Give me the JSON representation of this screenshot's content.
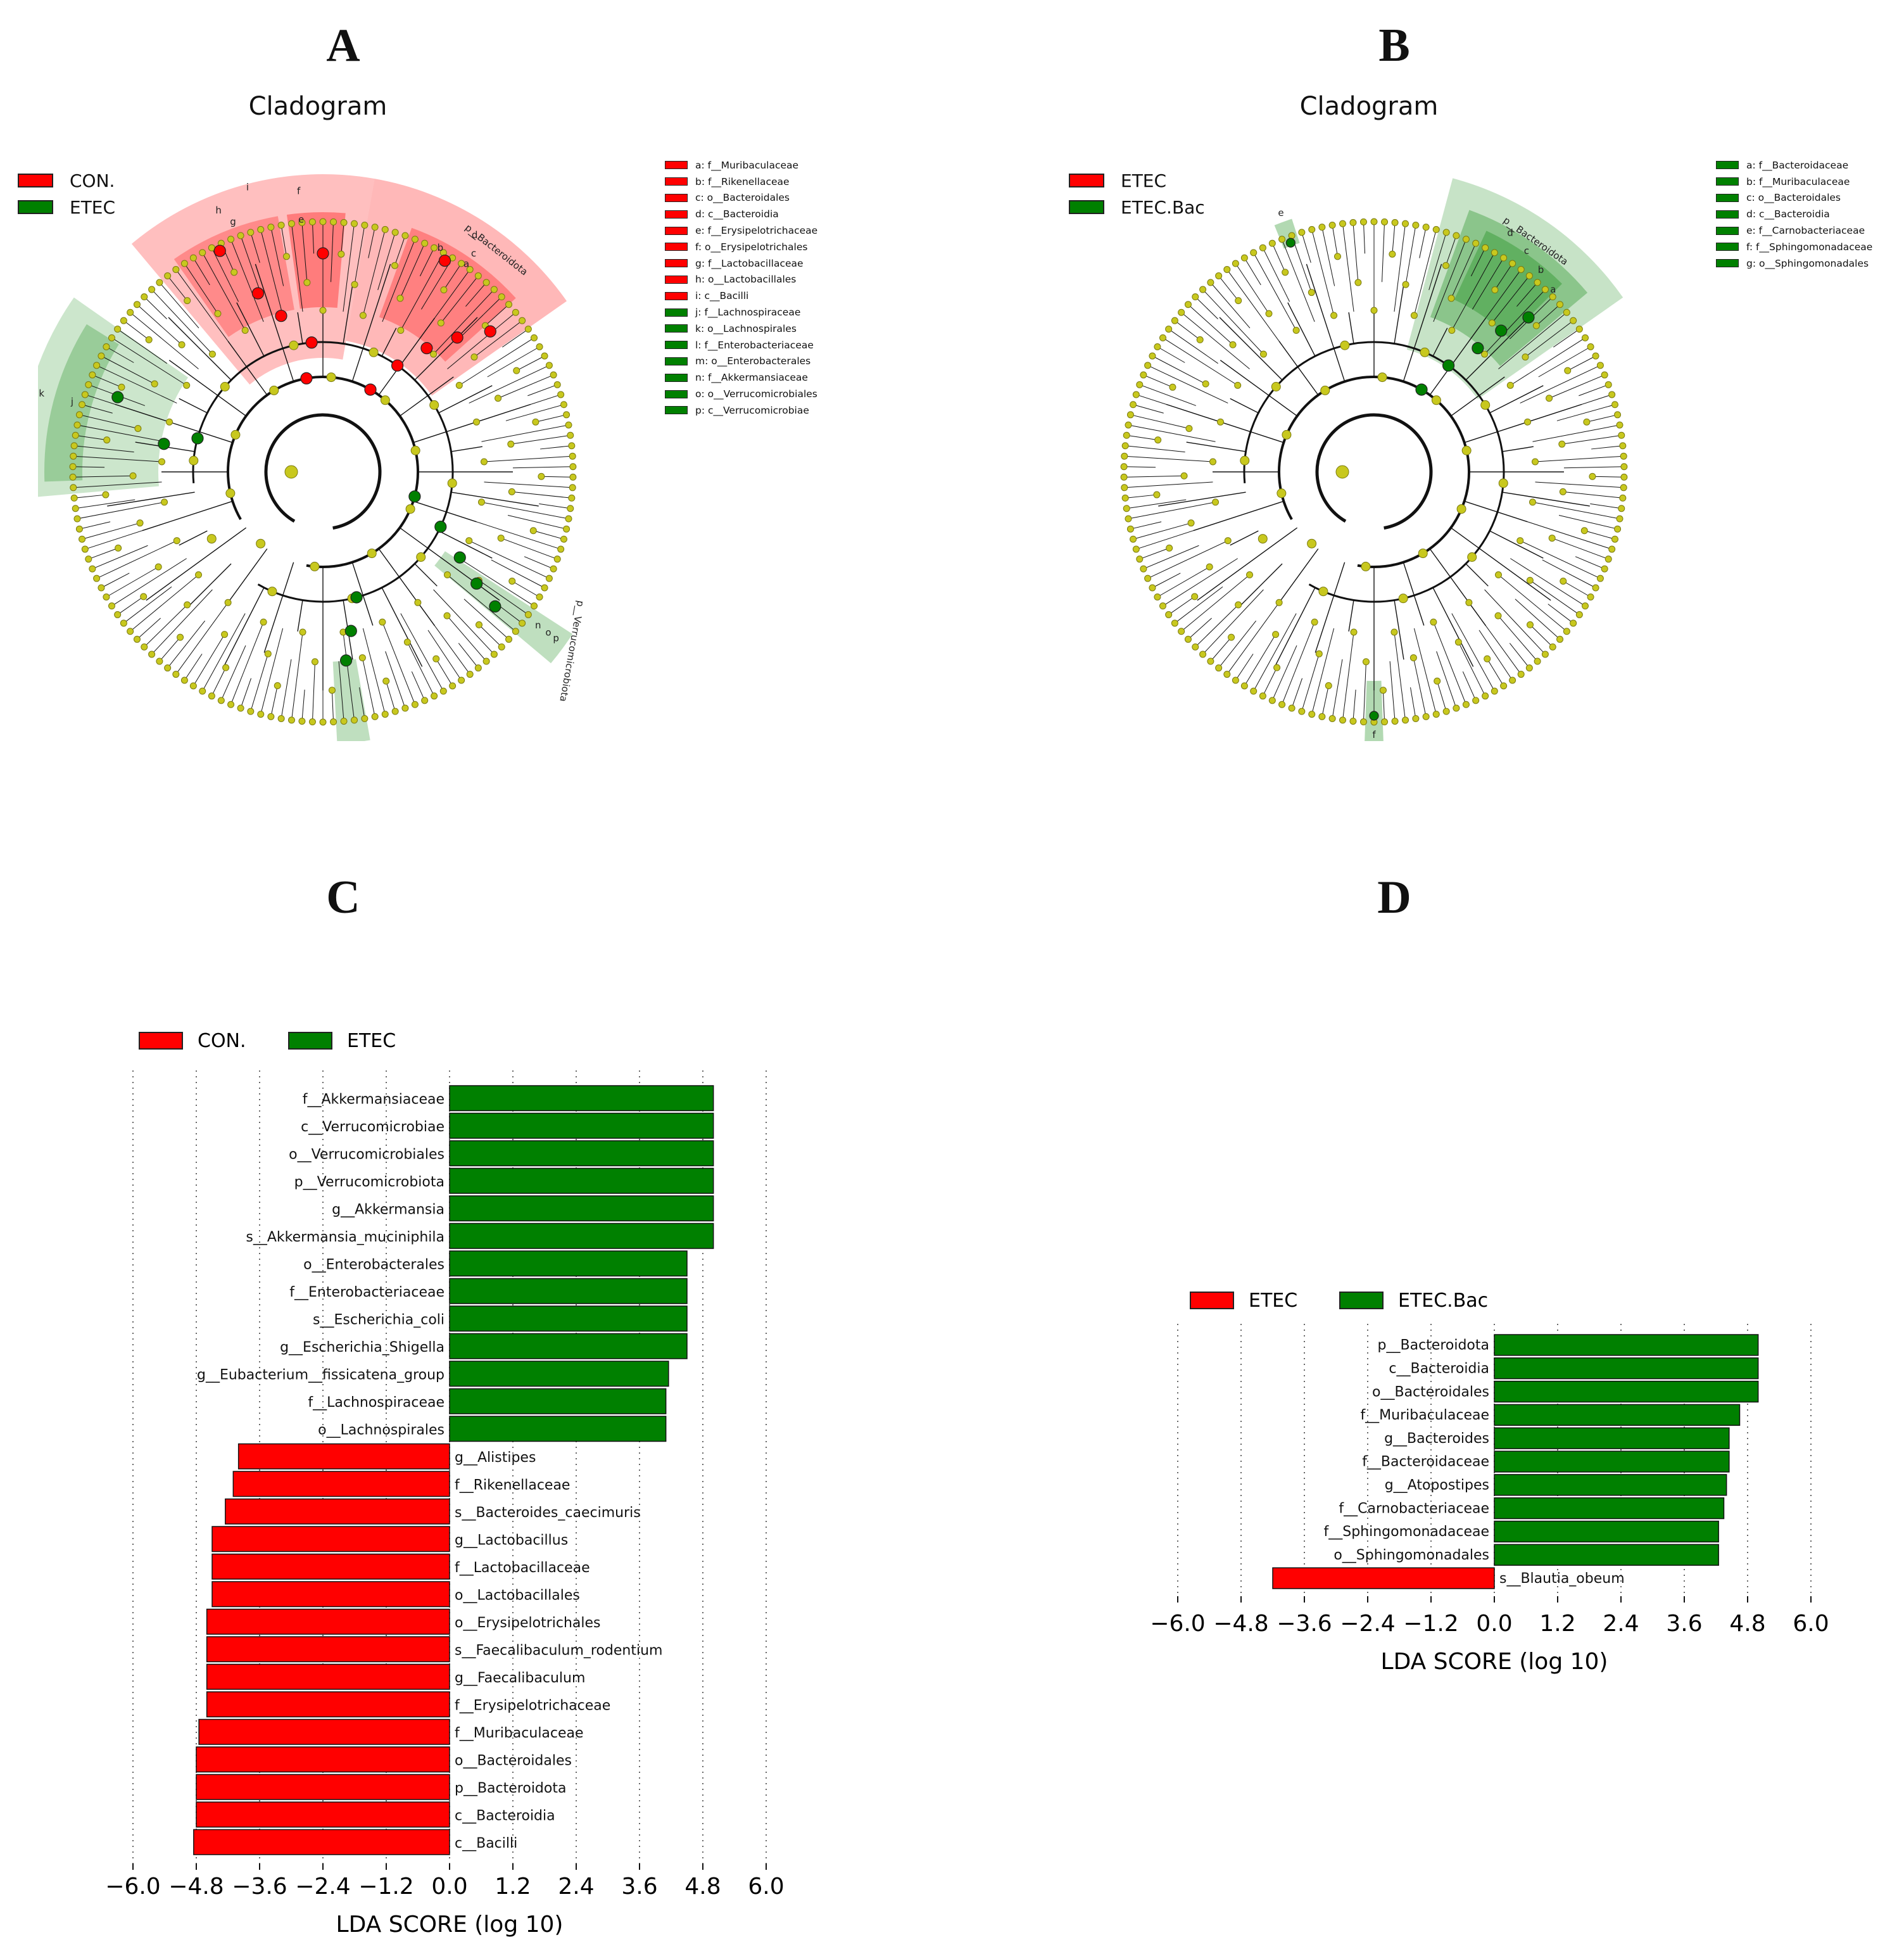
{
  "panels": {
    "A": "A",
    "B": "B",
    "C": "C",
    "D": "D"
  },
  "colors": {
    "red": "#ff0000",
    "green": "#008000",
    "node": "#c8c81e",
    "node_stroke": "#7a7a10"
  },
  "cladograms": [
    {
      "id": "A",
      "title": "Cladogram",
      "legend": [
        {
          "label": "CON.",
          "color": "#ff0000"
        },
        {
          "label": "ETEC",
          "color": "#008000"
        }
      ],
      "keys": [
        {
          "label": "a: f__Muribaculaceae",
          "color": "#ff0000"
        },
        {
          "label": "b: f__Rikenellaceae",
          "color": "#ff0000"
        },
        {
          "label": "c: o__Bacteroidales",
          "color": "#ff0000"
        },
        {
          "label": "d: c__Bacteroidia",
          "color": "#ff0000"
        },
        {
          "label": "e: f__Erysipelotrichaceae",
          "color": "#ff0000"
        },
        {
          "label": "f: o__Erysipelotrichales",
          "color": "#ff0000"
        },
        {
          "label": "g: f__Lactobacillaceae",
          "color": "#ff0000"
        },
        {
          "label": "h: o__Lactobacillales",
          "color": "#ff0000"
        },
        {
          "label": "i: c__Bacilli",
          "color": "#ff0000"
        },
        {
          "label": "j: f__Lachnospiraceae",
          "color": "#008000"
        },
        {
          "label": "k: o__Lachnospirales",
          "color": "#008000"
        },
        {
          "label": "l: f__Enterobacteriaceae",
          "color": "#008000"
        },
        {
          "label": "m: o__Enterobacterales",
          "color": "#008000"
        },
        {
          "label": "n: f__Akkermansiaceae",
          "color": "#008000"
        },
        {
          "label": "o: o__Verrucomicrobiales",
          "color": "#008000"
        },
        {
          "label": "p: c__Verrucomicrobiae",
          "color": "#008000"
        }
      ],
      "clade_labels": [
        "p__Bacteroidota",
        "p__Verrucomicrobiota",
        "a",
        "b",
        "c",
        "d",
        "e",
        "f",
        "g",
        "h",
        "i",
        "j",
        "k",
        "l",
        "m",
        "n",
        "o",
        "p"
      ]
    },
    {
      "id": "B",
      "title": "Cladogram",
      "legend": [
        {
          "label": "ETEC",
          "color": "#ff0000"
        },
        {
          "label": "ETEC.Bac",
          "color": "#008000"
        }
      ],
      "keys": [
        {
          "label": "a: f__Bacteroidaceae",
          "color": "#008000"
        },
        {
          "label": "b: f__Muribaculaceae",
          "color": "#008000"
        },
        {
          "label": "c: o__Bacteroidales",
          "color": "#008000"
        },
        {
          "label": "d: c__Bacteroidia",
          "color": "#008000"
        },
        {
          "label": "e: f__Carnobacteriaceae",
          "color": "#008000"
        },
        {
          "label": "f: f__Sphingomonadaceae",
          "color": "#008000"
        },
        {
          "label": "g: o__Sphingomonadales",
          "color": "#008000"
        }
      ],
      "clade_labels": [
        "p__Bacteroidota",
        "a",
        "b",
        "c",
        "d",
        "e",
        "f",
        "g"
      ]
    }
  ],
  "chart_data": [
    {
      "id": "C",
      "type": "bar",
      "orientation": "horizontal",
      "legend": [
        {
          "label": "CON.",
          "color": "#ff0000"
        },
        {
          "label": "ETEC",
          "color": "#008000"
        }
      ],
      "xlabel": "LDA SCORE (log 10)",
      "xlim": [
        -6.0,
        6.0
      ],
      "xticks": [
        "−6.0",
        "−4.8",
        "−3.6",
        "−2.4",
        "−1.2",
        "0.0",
        "1.2",
        "2.4",
        "3.6",
        "4.8",
        "6.0"
      ],
      "grid": "vertical dotted",
      "bars": [
        {
          "label": "f__Akkermansiaceae",
          "value": 5.0,
          "group": "ETEC"
        },
        {
          "label": "c__Verrucomicrobiae",
          "value": 5.0,
          "group": "ETEC"
        },
        {
          "label": "o__Verrucomicrobiales",
          "value": 5.0,
          "group": "ETEC"
        },
        {
          "label": "p__Verrucomicrobiota",
          "value": 5.0,
          "group": "ETEC"
        },
        {
          "label": "g__Akkermansia",
          "value": 5.0,
          "group": "ETEC"
        },
        {
          "label": "s__Akkermansia_muciniphila",
          "value": 5.0,
          "group": "ETEC"
        },
        {
          "label": "o__Enterobacterales",
          "value": 4.5,
          "group": "ETEC"
        },
        {
          "label": "f__Enterobacteriaceae",
          "value": 4.5,
          "group": "ETEC"
        },
        {
          "label": "s__Escherichia_coli",
          "value": 4.5,
          "group": "ETEC"
        },
        {
          "label": "g__Escherichia_Shigella",
          "value": 4.5,
          "group": "ETEC"
        },
        {
          "label": "g__Eubacterium__fissicatena_group",
          "value": 4.15,
          "group": "ETEC"
        },
        {
          "label": "f__Lachnospiraceae",
          "value": 4.1,
          "group": "ETEC"
        },
        {
          "label": "o__Lachnospirales",
          "value": 4.1,
          "group": "ETEC"
        },
        {
          "label": "g__Alistipes",
          "value": -4.0,
          "group": "CON."
        },
        {
          "label": "f__Rikenellaceae",
          "value": -4.1,
          "group": "CON."
        },
        {
          "label": "s__Bacteroides_caecimuris",
          "value": -4.25,
          "group": "CON."
        },
        {
          "label": "g__Lactobacillus",
          "value": -4.5,
          "group": "CON."
        },
        {
          "label": "f__Lactobacillaceae",
          "value": -4.5,
          "group": "CON."
        },
        {
          "label": "o__Lactobacillales",
          "value": -4.5,
          "group": "CON."
        },
        {
          "label": "o__Erysipelotrichales",
          "value": -4.6,
          "group": "CON."
        },
        {
          "label": "s__Faecalibaculum_rodentium",
          "value": -4.6,
          "group": "CON."
        },
        {
          "label": "g__Faecalibaculum",
          "value": -4.6,
          "group": "CON."
        },
        {
          "label": "f__Erysipelotrichaceae",
          "value": -4.6,
          "group": "CON."
        },
        {
          "label": "f__Muribaculaceae",
          "value": -4.75,
          "group": "CON."
        },
        {
          "label": "o__Bacteroidales",
          "value": -4.8,
          "group": "CON."
        },
        {
          "label": "p__Bacteroidota",
          "value": -4.8,
          "group": "CON."
        },
        {
          "label": "c__Bacteroidia",
          "value": -4.8,
          "group": "CON."
        },
        {
          "label": "c__Bacilli",
          "value": -4.85,
          "group": "CON."
        }
      ]
    },
    {
      "id": "D",
      "type": "bar",
      "orientation": "horizontal",
      "legend": [
        {
          "label": "ETEC",
          "color": "#ff0000"
        },
        {
          "label": "ETEC.Bac",
          "color": "#008000"
        }
      ],
      "xlabel": "LDA SCORE (log 10)",
      "xlim": [
        -6.0,
        6.0
      ],
      "xticks": [
        "−6.0",
        "−4.8",
        "−3.6",
        "−2.4",
        "−1.2",
        "0.0",
        "1.2",
        "2.4",
        "3.6",
        "4.8",
        "6.0"
      ],
      "grid": "vertical dotted",
      "bars": [
        {
          "label": "p__Bacteroidota",
          "value": 5.0,
          "group": "ETEC.Bac"
        },
        {
          "label": "c__Bacteroidia",
          "value": 5.0,
          "group": "ETEC.Bac"
        },
        {
          "label": "o__Bacteroidales",
          "value": 5.0,
          "group": "ETEC.Bac"
        },
        {
          "label": "f__Muribaculaceae",
          "value": 4.65,
          "group": "ETEC.Bac"
        },
        {
          "label": "g__Bacteroides",
          "value": 4.45,
          "group": "ETEC.Bac"
        },
        {
          "label": "f__Bacteroidaceae",
          "value": 4.45,
          "group": "ETEC.Bac"
        },
        {
          "label": "g__Atopostipes",
          "value": 4.4,
          "group": "ETEC.Bac"
        },
        {
          "label": "f__Carnobacteriaceae",
          "value": 4.35,
          "group": "ETEC.Bac"
        },
        {
          "label": "f__Sphingomonadaceae",
          "value": 4.25,
          "group": "ETEC.Bac"
        },
        {
          "label": "o__Sphingomonadales",
          "value": 4.25,
          "group": "ETEC.Bac"
        },
        {
          "label": "s__Blautia_obeum",
          "value": -4.2,
          "group": "ETEC"
        }
      ]
    }
  ]
}
